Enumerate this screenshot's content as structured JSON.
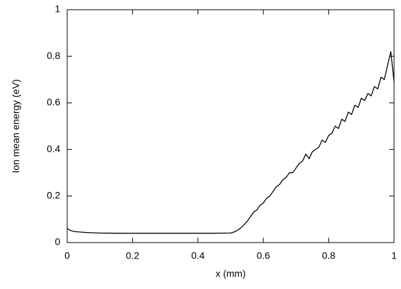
{
  "chart_data": {
    "type": "line",
    "xlabel": "x (mm)",
    "ylabel": "Ion mean energy (eV)",
    "xlim": [
      0,
      1
    ],
    "xticks": [
      0,
      0.2,
      0.4,
      0.6,
      0.8,
      1
    ],
    "ylim": [
      0,
      1
    ],
    "yticks": [
      0,
      0.2,
      0.4,
      0.6,
      0.8,
      1
    ],
    "series": [
      {
        "color": "#000000",
        "x": [
          0,
          0.01,
          0.02,
          0.04,
          0.06,
          0.1,
          0.15,
          0.2,
          0.25,
          0.3,
          0.35,
          0.4,
          0.45,
          0.5,
          0.51,
          0.52,
          0.53,
          0.54,
          0.55,
          0.56,
          0.57,
          0.58,
          0.59,
          0.6,
          0.61,
          0.62,
          0.63,
          0.64,
          0.65,
          0.66,
          0.67,
          0.68,
          0.69,
          0.7,
          0.71,
          0.72,
          0.73,
          0.74,
          0.75,
          0.76,
          0.77,
          0.78,
          0.79,
          0.8,
          0.81,
          0.82,
          0.83,
          0.84,
          0.85,
          0.86,
          0.87,
          0.88,
          0.89,
          0.9,
          0.91,
          0.92,
          0.93,
          0.94,
          0.95,
          0.96,
          0.97,
          0.98,
          0.99,
          1
        ],
        "values": [
          0.06,
          0.052,
          0.048,
          0.045,
          0.043,
          0.041,
          0.04,
          0.04,
          0.04,
          0.04,
          0.04,
          0.04,
          0.04,
          0.041,
          0.045,
          0.052,
          0.062,
          0.075,
          0.09,
          0.11,
          0.13,
          0.14,
          0.16,
          0.17,
          0.19,
          0.2,
          0.22,
          0.24,
          0.25,
          0.27,
          0.28,
          0.3,
          0.3,
          0.32,
          0.34,
          0.35,
          0.38,
          0.36,
          0.39,
          0.4,
          0.41,
          0.44,
          0.43,
          0.46,
          0.47,
          0.5,
          0.49,
          0.53,
          0.52,
          0.56,
          0.55,
          0.59,
          0.58,
          0.62,
          0.61,
          0.64,
          0.63,
          0.67,
          0.66,
          0.71,
          0.7,
          0.76,
          0.82,
          0.69
        ]
      }
    ]
  }
}
